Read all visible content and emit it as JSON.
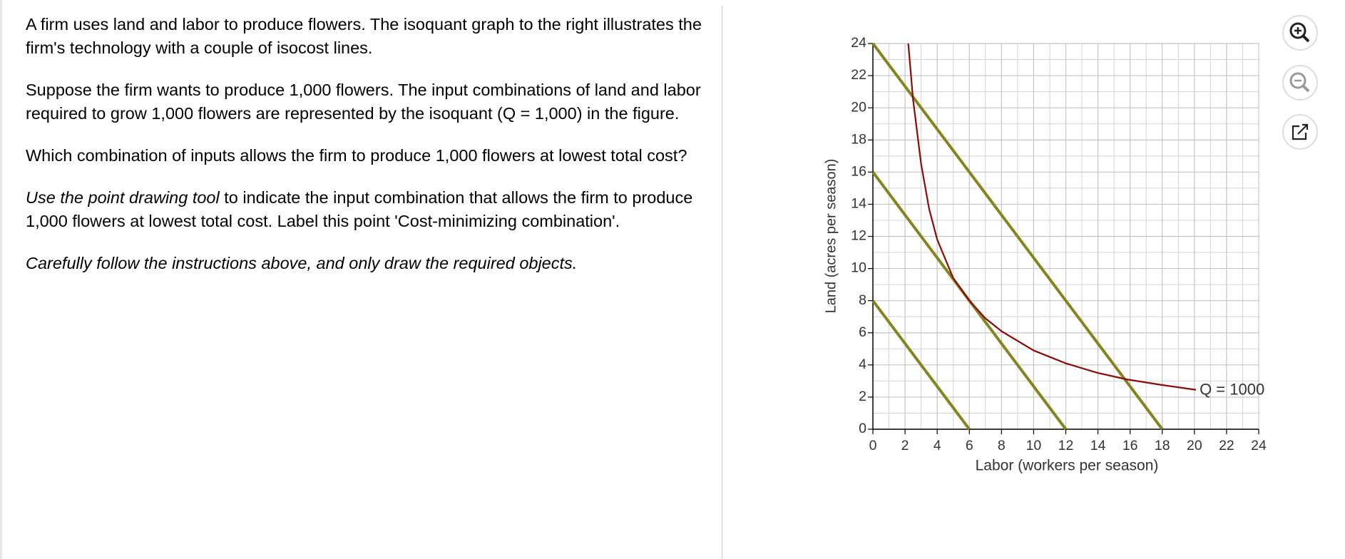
{
  "problem": {
    "intro": "A firm uses land and labor to produce flowers. The isoquant graph to the right illustrates the firm's technology with a couple of isocost lines.",
    "setup": "Suppose the firm wants to produce 1,000 flowers. The input combinations of land and labor required to grow 1,000 flowers are represented by the isoquant (Q = 1,000) in the figure.",
    "question": "Which combination of inputs allows the firm to produce 1,000 flowers at lowest total cost?",
    "instruction_italic": "Use the point drawing tool",
    "instruction": " to indicate the input combination that allows the firm to produce 1,000 flowers at lowest total cost. Label this point 'Cost-minimizing combination'.",
    "caution": "Carefully follow the instructions above, and only draw the required objects."
  },
  "chart_data": {
    "type": "line",
    "x_label": "Labor (workers per season)",
    "y_label": "Land (acres per season)",
    "xlim": [
      0,
      24
    ],
    "ylim": [
      0,
      24
    ],
    "xticks": [
      0,
      2,
      4,
      6,
      8,
      10,
      12,
      14,
      16,
      18,
      20,
      22,
      24
    ],
    "yticks": [
      0,
      2,
      4,
      6,
      8,
      10,
      12,
      14,
      16,
      18,
      20,
      22,
      24
    ],
    "minor_grid": [
      1,
      3,
      5,
      7,
      9,
      11,
      13,
      15,
      17,
      19,
      21,
      23
    ],
    "grid": true,
    "series": [
      {
        "name": "Q = 1000",
        "color": "#8b0a0a",
        "x": [
          2.2,
          2.5,
          3,
          3.5,
          4,
          5,
          6,
          7,
          8,
          10,
          12,
          14,
          15.8,
          18,
          20.1
        ],
        "values": [
          24,
          20.5,
          16.5,
          13.7,
          11.8,
          9.4,
          8,
          6.9,
          6.1,
          4.9,
          4.1,
          3.5,
          3.1,
          2.75,
          2.45
        ]
      },
      {
        "color": "#84851f",
        "x": [
          0,
          6
        ],
        "values": [
          8,
          0
        ]
      },
      {
        "color": "#84851f",
        "x": [
          0,
          12
        ],
        "values": [
          16,
          0
        ]
      },
      {
        "color": "#84851f",
        "x": [
          0,
          18
        ],
        "values": [
          24,
          0
        ]
      }
    ]
  }
}
